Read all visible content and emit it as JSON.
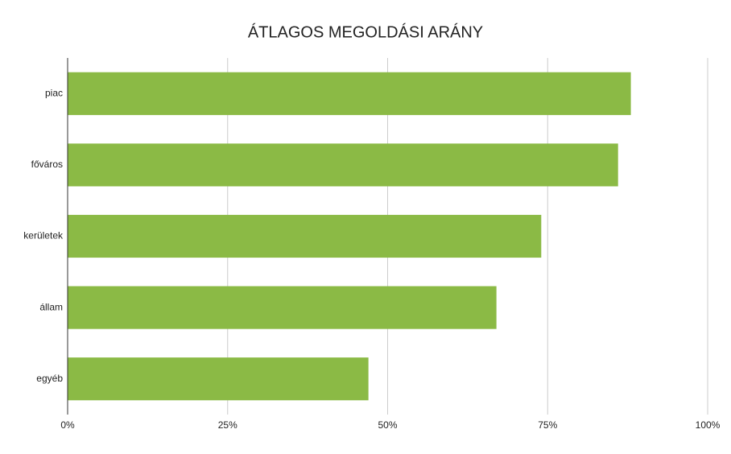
{
  "chart_data": {
    "type": "hbar",
    "title": "ÁTLAGOS MEGOLDÁSI ARÁNY",
    "categories": [
      "piac",
      "főváros",
      "kerületek",
      "állam",
      "egyéb"
    ],
    "values": [
      88,
      86,
      74,
      67,
      47
    ],
    "color": "#8bba45",
    "xlim": [
      0,
      100
    ],
    "xticks": [
      {
        "value": 0,
        "label": "0%"
      },
      {
        "value": 25,
        "label": "25%"
      },
      {
        "value": 50,
        "label": "50%"
      },
      {
        "value": 75,
        "label": "75%"
      },
      {
        "value": 100,
        "label": "100%"
      }
    ],
    "grid": true
  }
}
